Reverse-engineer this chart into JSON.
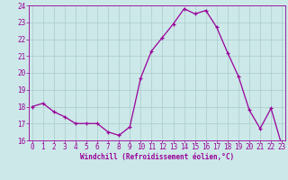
{
  "x": [
    0,
    1,
    2,
    3,
    4,
    5,
    6,
    7,
    8,
    9,
    10,
    11,
    12,
    13,
    14,
    15,
    16,
    17,
    18,
    19,
    20,
    21,
    22,
    23
  ],
  "y": [
    18.0,
    18.2,
    17.7,
    17.4,
    17.0,
    17.0,
    17.0,
    16.5,
    16.3,
    16.8,
    19.7,
    21.3,
    22.1,
    22.9,
    23.8,
    23.5,
    23.7,
    22.7,
    21.2,
    19.8,
    17.8,
    16.7,
    17.9,
    15.7
  ],
  "line_color": "#990099",
  "marker": "+",
  "marker_color": "#990099",
  "bg_color": "#cce8e8",
  "grid_color": "#aacccc",
  "xlabel": "Windchill (Refroidissement éolien,°C)",
  "ylim": [
    16,
    24
  ],
  "yticks": [
    16,
    17,
    18,
    19,
    20,
    21,
    22,
    23,
    24
  ],
  "xticks": [
    0,
    1,
    2,
    3,
    4,
    5,
    6,
    7,
    8,
    9,
    10,
    11,
    12,
    13,
    14,
    15,
    16,
    17,
    18,
    19,
    20,
    21,
    22,
    23
  ],
  "xlabel_color": "#990099",
  "tick_color": "#990099",
  "spine_color": "#990099",
  "line_width": 0.9,
  "marker_size": 3.5,
  "tick_fontsize": 5.5,
  "xlabel_fontsize": 5.5
}
